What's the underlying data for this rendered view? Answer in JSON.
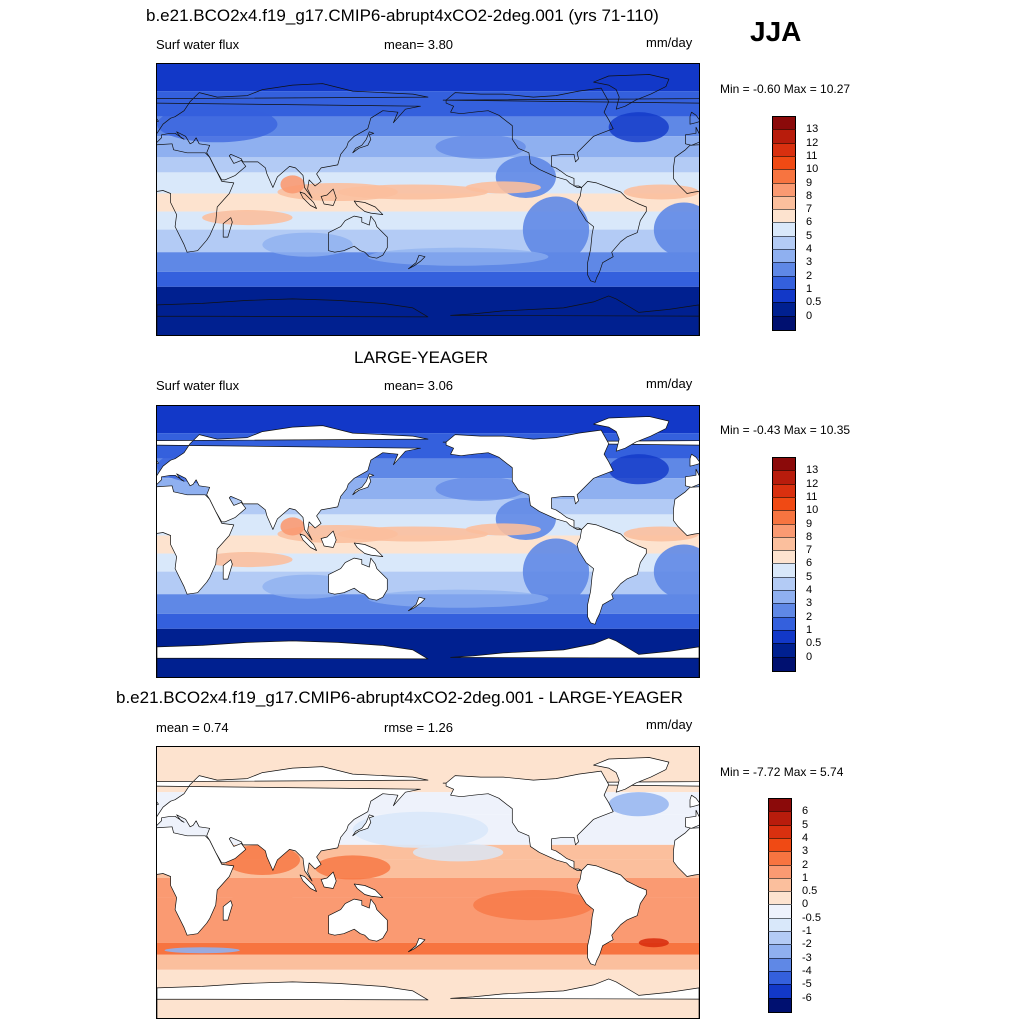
{
  "season": "JJA",
  "panels": [
    {
      "title": "b.e21.BCO2x4.f19_g17.CMIP6-abrupt4xCO2-2deg.001 (yrs 71-110)",
      "left_label": "Surf water flux",
      "mid_label": "mean=   3.80",
      "units": "mm/day",
      "minmax": "Min =  -0.60 Max =  10.27",
      "colorbar": {
        "labels": [
          "13",
          "12",
          "11",
          "10",
          "9",
          "8",
          "7",
          "6",
          "5",
          "4",
          "3",
          "2",
          "1",
          "0.5",
          "0"
        ],
        "colors": [
          "#8b0a0a",
          "#b81c0c",
          "#d9300f",
          "#f04a14",
          "#f77440",
          "#fa9a72",
          "#fbbf9d",
          "#fde3cf",
          "#d9e8fa",
          "#b3cbf5",
          "#8fb0f0",
          "#5f88e6",
          "#3460dd",
          "#1238c8",
          "#002090",
          "#001070"
        ]
      },
      "mask_land": false
    },
    {
      "title": "LARGE-YEAGER",
      "left_label": "Surf water flux",
      "mid_label": "mean=   3.06",
      "units": "mm/day",
      "minmax": "Min =  -0.43 Max =  10.35",
      "colorbar": {
        "labels": [
          "13",
          "12",
          "11",
          "10",
          "9",
          "8",
          "7",
          "6",
          "5",
          "4",
          "3",
          "2",
          "1",
          "0.5",
          "0"
        ],
        "colors": [
          "#8b0a0a",
          "#b81c0c",
          "#d9300f",
          "#f04a14",
          "#f77440",
          "#fa9a72",
          "#fbbf9d",
          "#fde3cf",
          "#d9e8fa",
          "#b3cbf5",
          "#8fb0f0",
          "#5f88e6",
          "#3460dd",
          "#1238c8",
          "#002090",
          "#001070"
        ]
      },
      "mask_land": true
    },
    {
      "title": "b.e21.BCO2x4.f19_g17.CMIP6-abrupt4xCO2-2deg.001 - LARGE-YEAGER",
      "left_label": "mean =   0.74",
      "mid_label": "rmse =   1.26",
      "units": "mm/day",
      "minmax": "Min =  -7.72 Max =   5.74",
      "colorbar": {
        "labels": [
          "6",
          "5",
          "4",
          "3",
          "2",
          "1",
          "0.5",
          "0",
          "-0.5",
          "-1",
          "-2",
          "-3",
          "-4",
          "-5",
          "-6"
        ],
        "colors": [
          "#8b0a0a",
          "#b81c0c",
          "#d9300f",
          "#f04a14",
          "#f77440",
          "#fa9a72",
          "#fbbf9d",
          "#fde3cf",
          "#eef2fb",
          "#d9e8fa",
          "#b3cbf5",
          "#8fb0f0",
          "#5f88e6",
          "#3460dd",
          "#1238c8",
          "#001070"
        ]
      },
      "mask_land": true
    }
  ]
}
